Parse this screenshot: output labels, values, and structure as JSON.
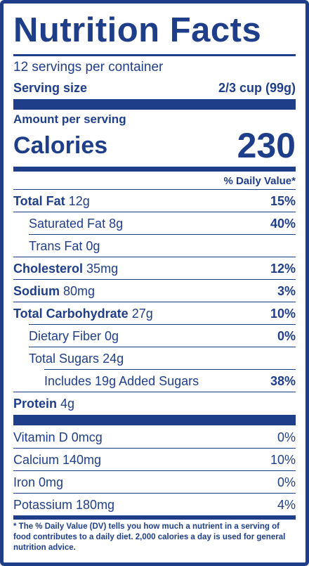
{
  "label": {
    "title": "Nutrition Facts",
    "servings_per_container": "12 servings per container",
    "serving_size_label": "Serving size",
    "serving_size_value": "2/3 cup (99g)",
    "amount_per_serving": "Amount per serving",
    "calories_label": "Calories",
    "calories_value": "230",
    "dv_header": "% Daily Value*",
    "nutrients": [
      {
        "name": "Total Fat",
        "amount": "12g",
        "dv": "15%"
      },
      {
        "name": "Saturated Fat",
        "amount": "8g",
        "dv": "40%"
      },
      {
        "name": "Trans Fat",
        "amount": "0g",
        "dv": ""
      },
      {
        "name": "Cholesterol",
        "amount": "35mg",
        "dv": "12%"
      },
      {
        "name": "Sodium",
        "amount": "80mg",
        "dv": "3%"
      },
      {
        "name": "Total Carbohydrate",
        "amount": "27g",
        "dv": "10%"
      },
      {
        "name": "Dietary Fiber",
        "amount": "0g",
        "dv": "0%"
      },
      {
        "name": "Total Sugars",
        "amount": "24g",
        "dv": ""
      },
      {
        "name": "Includes 19g Added Sugars",
        "amount": "",
        "dv": "38%"
      },
      {
        "name": "Protein",
        "amount": "4g",
        "dv": ""
      }
    ],
    "vitamins": [
      {
        "text": "Vitamin D 0mcg",
        "dv": "0%"
      },
      {
        "text": "Calcium 140mg",
        "dv": "10%"
      },
      {
        "text": "Iron 0mg",
        "dv": "0%"
      },
      {
        "text": "Potassium 180mg",
        "dv": "4%"
      }
    ],
    "footnote": "* The % Daily Value (DV) tells you how much a nutrient in a serving of food contributes to a daily diet. 2,000 calories a day is used for general nutrition advice.",
    "colors": {
      "ink": "#1f3e8a",
      "background": "#ffffff"
    }
  }
}
